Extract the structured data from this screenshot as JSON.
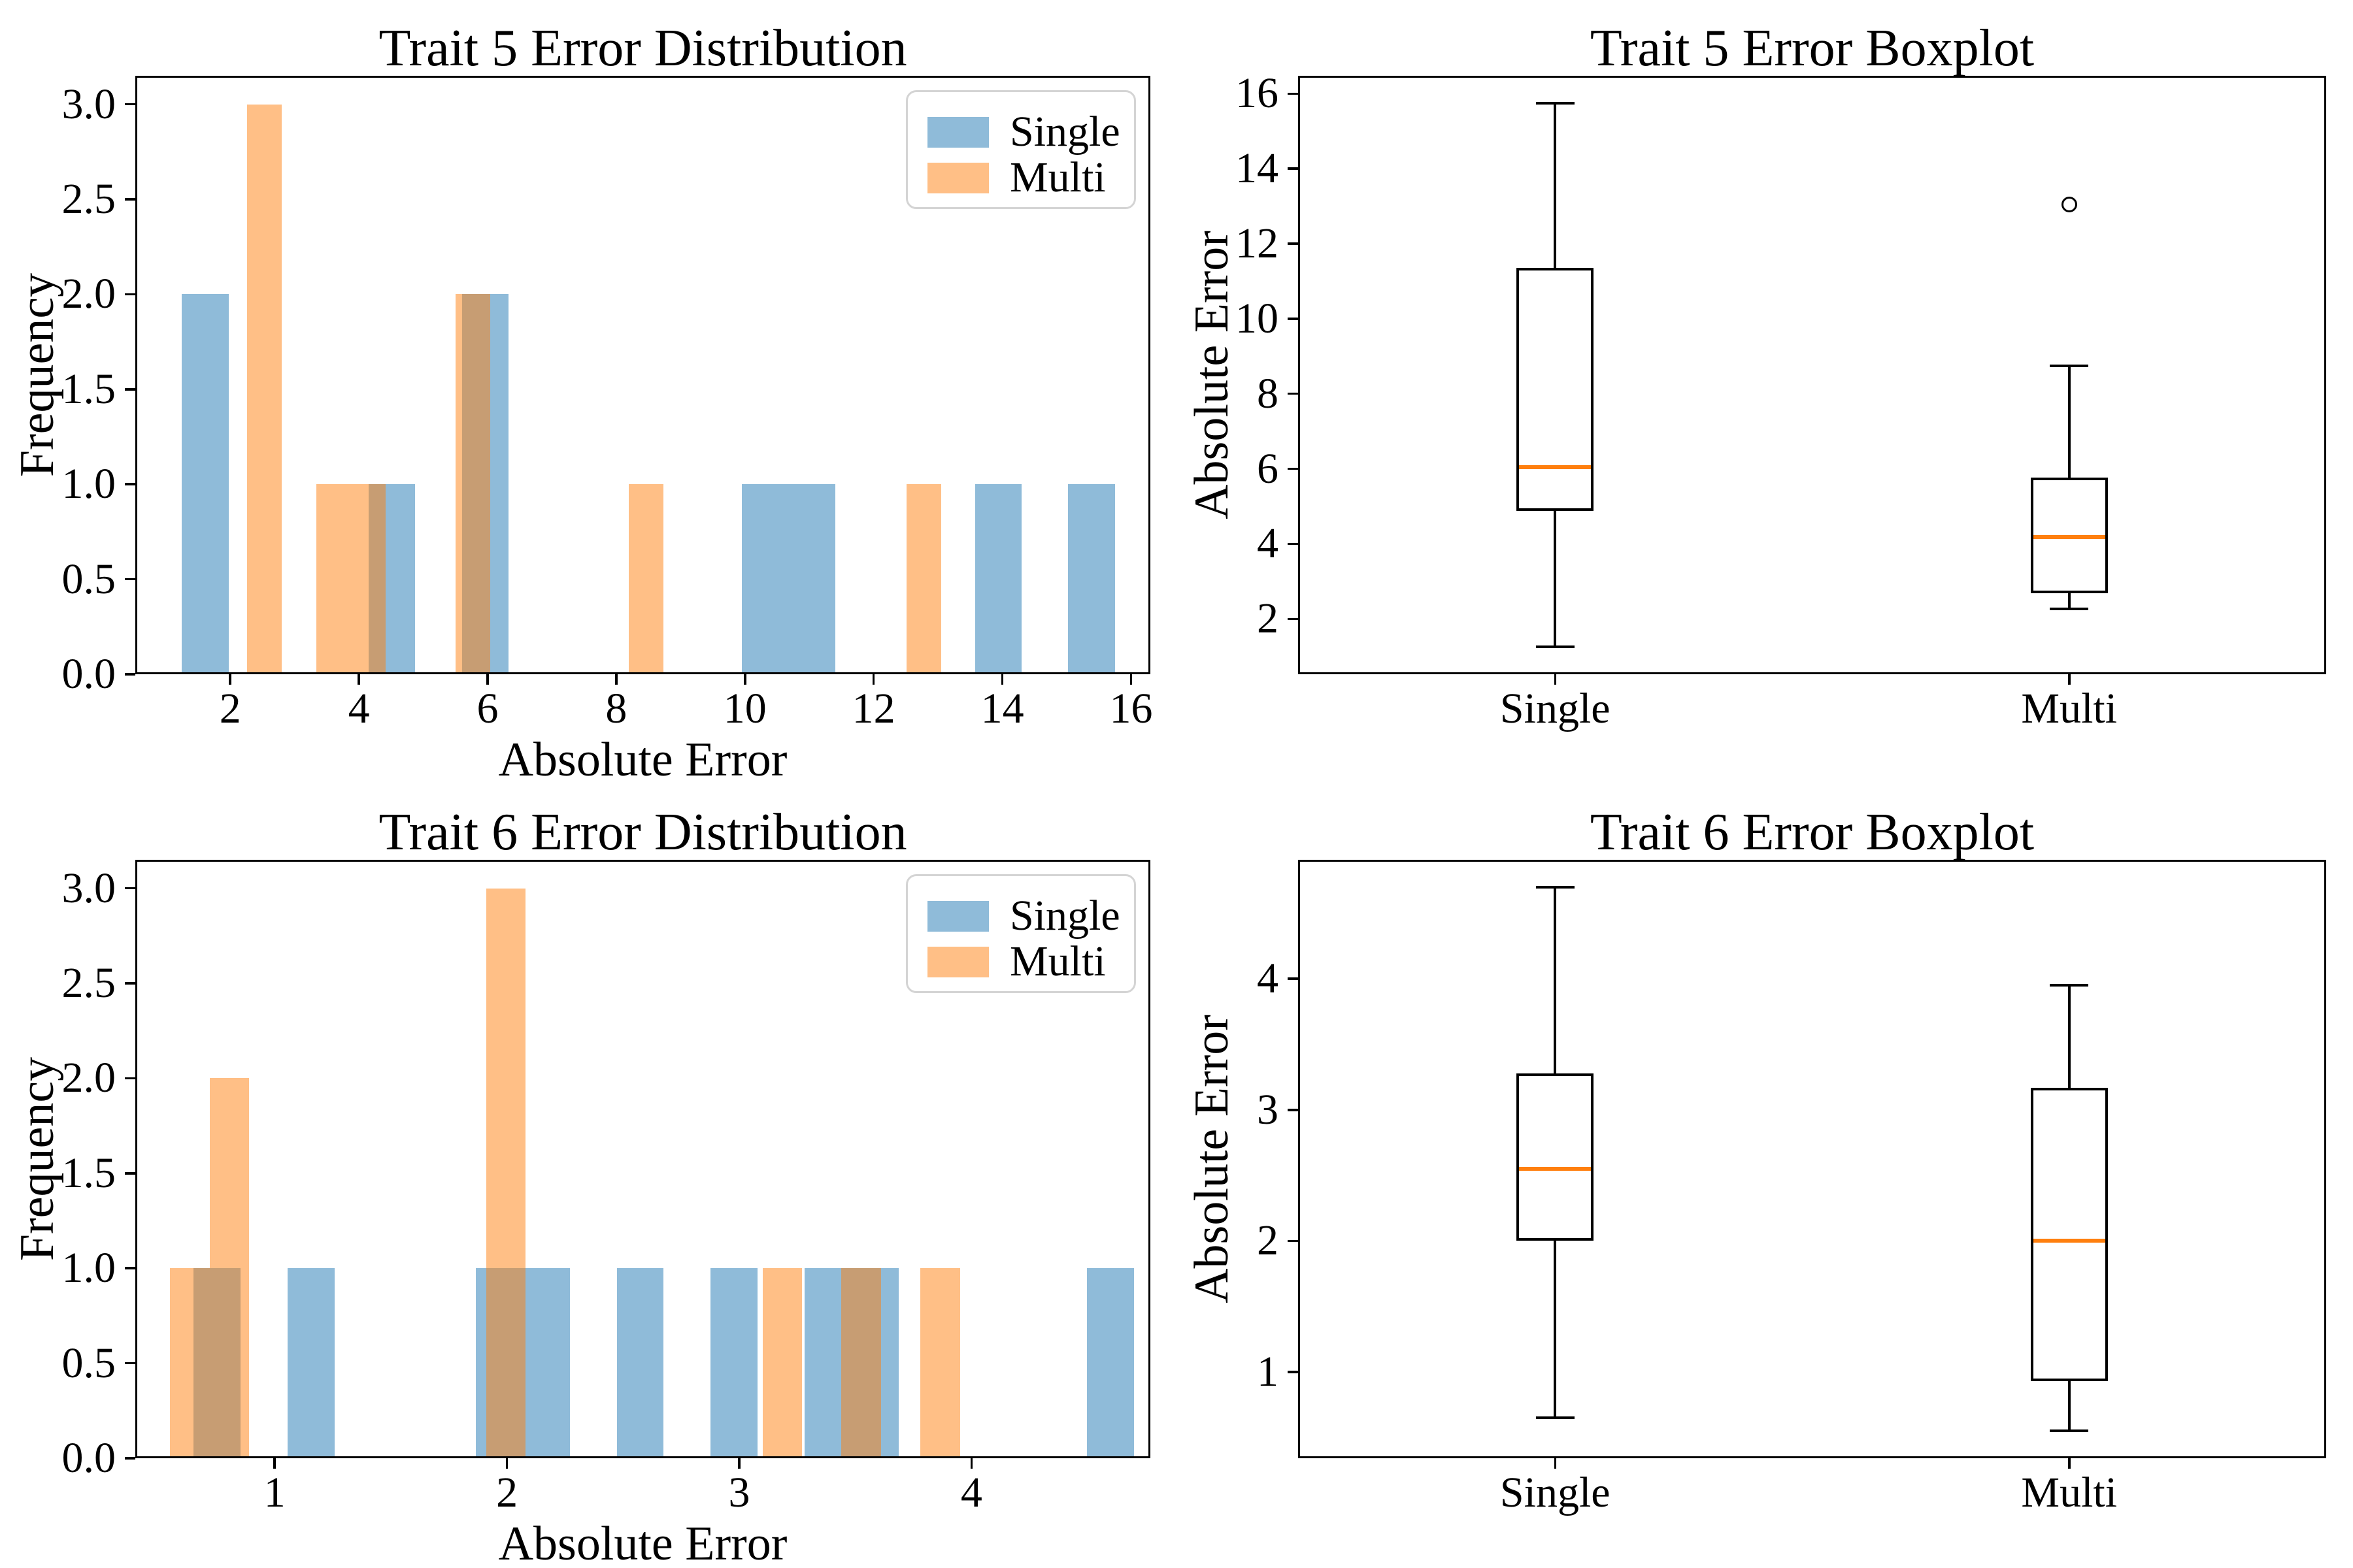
{
  "figure": {
    "background": "#ffffff",
    "text_color": "#000000",
    "single_color": "rgba(31,119,180,0.5)",
    "multi_color": "rgba(255,127,14,0.5)",
    "median_color": "#ff7f0e",
    "legend_labels": [
      "Single",
      "Multi"
    ]
  },
  "chart_data": [
    {
      "type": "bar",
      "subtype": "overlaid-histogram",
      "title": "Trait 5 Error Distribution",
      "xlabel": "Absolute Error",
      "ylabel": "Frequency",
      "xlim": [
        0.525,
        16.3
      ],
      "ylim": [
        0,
        3.15
      ],
      "grid": false,
      "xticks": [
        {
          "v": 2,
          "l": "2"
        },
        {
          "v": 4,
          "l": "4"
        },
        {
          "v": 6,
          "l": "6"
        },
        {
          "v": 8,
          "l": "8"
        },
        {
          "v": 10,
          "l": "10"
        },
        {
          "v": 12,
          "l": "12"
        },
        {
          "v": 14,
          "l": "14"
        },
        {
          "v": 16,
          "l": "16"
        }
      ],
      "yticks": [
        {
          "v": 0,
          "l": "0.0"
        },
        {
          "v": 0.5,
          "l": "0.5"
        },
        {
          "v": 1,
          "l": "1.0"
        },
        {
          "v": 1.5,
          "l": "1.5"
        },
        {
          "v": 2,
          "l": "2.0"
        },
        {
          "v": 2.5,
          "l": "2.5"
        },
        {
          "v": 3,
          "l": "3.0"
        }
      ],
      "legend": {
        "position": "upper-right",
        "entries": [
          "Single",
          "Multi"
        ]
      },
      "series": [
        {
          "name": "Single",
          "color": "rgba(31,119,180,0.5)",
          "bin_width": 0.725,
          "bars": [
            [
              1.25,
              1.975,
              2
            ],
            [
              4.15,
              4.875,
              1
            ],
            [
              5.6,
              6.325,
              2
            ],
            [
              9.95,
              10.675,
              1
            ],
            [
              10.675,
              11.4,
              1
            ],
            [
              13.575,
              14.3,
              1
            ],
            [
              15.025,
              15.75,
              1
            ]
          ]
        },
        {
          "name": "Multi",
          "color": "rgba(255,127,14,0.5)",
          "bin_width": 0.5395,
          "bars": [
            [
              2.26,
              2.8,
              3
            ],
            [
              3.34,
              3.88,
              1
            ],
            [
              3.88,
              4.42,
              1
            ],
            [
              5.5,
              6.04,
              2
            ],
            [
              8.19,
              8.73,
              1
            ],
            [
              12.51,
              13.05,
              1
            ]
          ]
        }
      ]
    },
    {
      "type": "boxplot",
      "title": "Trait 5 Error Boxplot",
      "xlabel": "",
      "ylabel": "Absolute Error",
      "xlim": [
        0.5,
        2.5
      ],
      "ylim": [
        0.525,
        16.475
      ],
      "grid": false,
      "xticks": [
        {
          "v": 1,
          "l": "Single"
        },
        {
          "v": 2,
          "l": "Multi"
        }
      ],
      "yticks": [
        {
          "v": 2,
          "l": "2"
        },
        {
          "v": 4,
          "l": "4"
        },
        {
          "v": 6,
          "l": "6"
        },
        {
          "v": 8,
          "l": "8"
        },
        {
          "v": 10,
          "l": "10"
        },
        {
          "v": 12,
          "l": "12"
        },
        {
          "v": 14,
          "l": "14"
        },
        {
          "v": 16,
          "l": "16"
        }
      ],
      "box_width": 0.15,
      "cap_width": 0.075,
      "median_color": "#ff7f0e",
      "groups": [
        {
          "label": "Single",
          "pos": 1,
          "whislo": 1.25,
          "q1": 4.88,
          "med": 6.05,
          "q3": 11.35,
          "whishi": 15.75,
          "fliers": []
        },
        {
          "label": "Multi",
          "pos": 2,
          "whislo": 2.26,
          "q1": 2.69,
          "med": 4.19,
          "q3": 5.77,
          "whishi": 8.75,
          "fliers": [
            13.05
          ]
        }
      ]
    },
    {
      "type": "bar",
      "subtype": "overlaid-histogram",
      "title": "Trait 6 Error Distribution",
      "xlabel": "Absolute Error",
      "ylabel": "Frequency",
      "xlim": [
        0.4,
        4.77
      ],
      "ylim": [
        0,
        3.15
      ],
      "grid": false,
      "xticks": [
        {
          "v": 1,
          "l": "1"
        },
        {
          "v": 2,
          "l": "2"
        },
        {
          "v": 3,
          "l": "3"
        },
        {
          "v": 4,
          "l": "4"
        }
      ],
      "yticks": [
        {
          "v": 0,
          "l": "0.0"
        },
        {
          "v": 0.5,
          "l": "0.5"
        },
        {
          "v": 1,
          "l": "1.0"
        },
        {
          "v": 1.5,
          "l": "1.5"
        },
        {
          "v": 2,
          "l": "2.0"
        },
        {
          "v": 2.5,
          "l": "2.5"
        },
        {
          "v": 3,
          "l": "3.0"
        }
      ],
      "legend": {
        "position": "upper-right",
        "entries": [
          "Single",
          "Multi"
        ]
      },
      "series": [
        {
          "name": "Single",
          "color": "rgba(31,119,180,0.5)",
          "bin_width": 0.2025,
          "bars": [
            [
              0.65,
              0.8525,
              1
            ],
            [
              1.055,
              1.2575,
              1
            ],
            [
              1.865,
              2.0675,
              1
            ],
            [
              2.0675,
              2.27,
              1
            ],
            [
              2.4725,
              2.675,
              1
            ],
            [
              2.8775,
              3.08,
              1
            ],
            [
              3.2825,
              3.485,
              1
            ],
            [
              3.485,
              3.6875,
              1
            ],
            [
              4.4975,
              4.7,
              1
            ]
          ]
        },
        {
          "name": "Multi",
          "color": "rgba(255,127,14,0.5)",
          "bin_width": 0.17,
          "bars": [
            [
              0.55,
              0.72,
              1
            ],
            [
              0.72,
              0.89,
              2
            ],
            [
              1.91,
              2.08,
              3
            ],
            [
              3.1,
              3.27,
              1
            ],
            [
              3.44,
              3.61,
              1
            ],
            [
              3.78,
              3.95,
              1
            ]
          ]
        }
      ]
    },
    {
      "type": "boxplot",
      "title": "Trait 6 Error Boxplot",
      "xlabel": "",
      "ylabel": "Absolute Error",
      "xlim": [
        0.5,
        2.5
      ],
      "ylim": [
        0.3425,
        4.9075
      ],
      "grid": false,
      "xticks": [
        {
          "v": 1,
          "l": "Single"
        },
        {
          "v": 2,
          "l": "Multi"
        }
      ],
      "yticks": [
        {
          "v": 1,
          "l": "1"
        },
        {
          "v": 2,
          "l": "2"
        },
        {
          "v": 3,
          "l": "3"
        },
        {
          "v": 4,
          "l": "4"
        }
      ],
      "box_width": 0.15,
      "cap_width": 0.075,
      "median_color": "#ff7f0e",
      "groups": [
        {
          "label": "Single",
          "pos": 1,
          "whislo": 0.65,
          "q1": 2.0,
          "med": 2.55,
          "q3": 3.28,
          "whishi": 4.7,
          "fliers": []
        },
        {
          "label": "Multi",
          "pos": 2,
          "whislo": 0.55,
          "q1": 0.93,
          "med": 2.0,
          "q3": 3.17,
          "whishi": 3.95,
          "fliers": []
        }
      ]
    }
  ]
}
